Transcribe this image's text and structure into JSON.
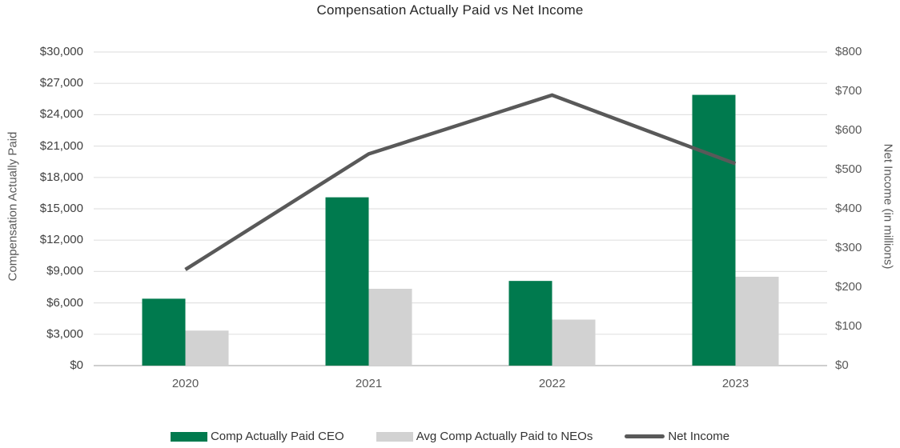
{
  "chart_data": {
    "type": "combo",
    "title": "Compensation Actually Paid vs Net Income",
    "categories": [
      "2020",
      "2021",
      "2022",
      "2023"
    ],
    "series": [
      {
        "name": "Comp Actually Paid CEO",
        "type": "bar",
        "axis": "left",
        "color": "#007A4E",
        "values": [
          6400,
          16100,
          8100,
          25900
        ]
      },
      {
        "name": "Avg Comp Actually Paid to NEOs",
        "type": "bar",
        "axis": "left",
        "color": "#D2D2D2",
        "values": [
          3350,
          7350,
          4400,
          8500
        ]
      },
      {
        "name": "Net Income",
        "type": "line",
        "axis": "right",
        "color": "#595959",
        "values": [
          245,
          540,
          690,
          515
        ]
      }
    ],
    "left_axis": {
      "label": "Compensation Actually Paid",
      "min": 0,
      "max": 30000,
      "step": 3000,
      "ticks": [
        "$30,000",
        "$27,000",
        "$24,000",
        "$21,000",
        "$18,000",
        "$15,000",
        "$12,000",
        "$9,000",
        "$6,000",
        "$3,000",
        "$0"
      ]
    },
    "right_axis": {
      "label": "Net Income (in millions)",
      "min": 0,
      "max": 800,
      "step": 100,
      "ticks": [
        "$800",
        "$700",
        "$600",
        "$500",
        "$400",
        "$300",
        "$200",
        "$100",
        "$0"
      ]
    },
    "legend_position": "bottom",
    "grid": true
  },
  "colors": {
    "gridline": "#E2E2E2",
    "axis_line": "#BFBFBF",
    "title_text": "#262626",
    "left_tick_text": "#404040",
    "right_tick_text": "#595959",
    "axis_title_text": "#595959",
    "x_label_text": "#595959",
    "legend_text": "#333333"
  }
}
